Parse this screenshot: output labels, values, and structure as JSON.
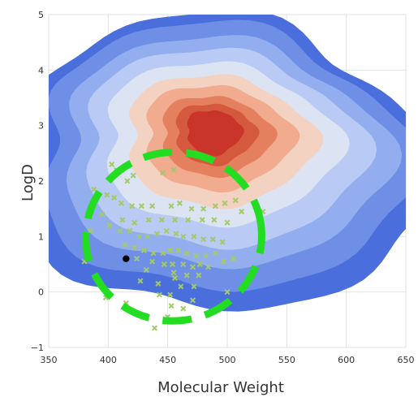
{
  "chart_data": {
    "type": "scatter",
    "title": "",
    "xlabel": "Molecular Weight",
    "ylabel": "LogD",
    "xlim": [
      350,
      650
    ],
    "ylim": [
      -1,
      5
    ],
    "x_ticks": [
      350,
      400,
      450,
      500,
      550,
      600,
      650
    ],
    "x_tick_labels": [
      "350",
      "400",
      "450",
      "500",
      "550",
      "600",
      "650"
    ],
    "y_ticks": [
      -1,
      0,
      1,
      2,
      3,
      4,
      5
    ],
    "y_tick_labels": [
      "−1",
      "0",
      "1",
      "2",
      "3",
      "4",
      "5"
    ],
    "grid": true,
    "legend": "none",
    "background_density": {
      "type": "filled-contour",
      "peak": {
        "x": 487,
        "y": 2.9
      },
      "colors": [
        "#4a6fdc",
        "#6f8fe6",
        "#93aeef",
        "#b9cbf4",
        "#dce4f3",
        "#f4d2c2",
        "#f1ab8f",
        "#e5805f",
        "#d55a3d",
        "#c9352a"
      ]
    },
    "marker_series": {
      "name": "",
      "marker": "x",
      "color": "#a3c96a",
      "points": [
        [
          403,
          2.3
        ],
        [
          407,
          2.2
        ],
        [
          405,
          1.7
        ],
        [
          416,
          2.0
        ],
        [
          421,
          2.1
        ],
        [
          446,
          2.15
        ],
        [
          455,
          2.2
        ],
        [
          507,
          1.65
        ],
        [
          388,
          1.85
        ],
        [
          391,
          1.75
        ],
        [
          399,
          1.75
        ],
        [
          411,
          1.6
        ],
        [
          420,
          1.55
        ],
        [
          428,
          1.55
        ],
        [
          437,
          1.55
        ],
        [
          453,
          1.55
        ],
        [
          460,
          1.6
        ],
        [
          470,
          1.5
        ],
        [
          480,
          1.5
        ],
        [
          490,
          1.55
        ],
        [
          498,
          1.6
        ],
        [
          512,
          1.45
        ],
        [
          530,
          1.45
        ],
        [
          412,
          1.3
        ],
        [
          422,
          1.25
        ],
        [
          434,
          1.3
        ],
        [
          445,
          1.3
        ],
        [
          456,
          1.3
        ],
        [
          467,
          1.3
        ],
        [
          479,
          1.3
        ],
        [
          489,
          1.3
        ],
        [
          500,
          1.25
        ],
        [
          410,
          1.1
        ],
        [
          418,
          1.1
        ],
        [
          426,
          1.0
        ],
        [
          433,
          1.0
        ],
        [
          441,
          1.05
        ],
        [
          449,
          1.1
        ],
        [
          457,
          1.05
        ],
        [
          463,
          1.0
        ],
        [
          472,
          1.0
        ],
        [
          480,
          0.95
        ],
        [
          488,
          0.95
        ],
        [
          496,
          0.9
        ],
        [
          385,
          1.1
        ],
        [
          401,
          1.2
        ],
        [
          395,
          1.4
        ],
        [
          414,
          0.85
        ],
        [
          422,
          0.8
        ],
        [
          430,
          0.75
        ],
        [
          438,
          0.7
        ],
        [
          446,
          0.7
        ],
        [
          452,
          0.75
        ],
        [
          459,
          0.75
        ],
        [
          466,
          0.7
        ],
        [
          474,
          0.65
        ],
        [
          482,
          0.65
        ],
        [
          490,
          0.7
        ],
        [
          497,
          0.55
        ],
        [
          505,
          0.6
        ],
        [
          424,
          0.6
        ],
        [
          437,
          0.55
        ],
        [
          447,
          0.5
        ],
        [
          454,
          0.5
        ],
        [
          463,
          0.5
        ],
        [
          471,
          0.45
        ],
        [
          477,
          0.5
        ],
        [
          484,
          0.45
        ],
        [
          380,
          0.55
        ],
        [
          432,
          0.4
        ],
        [
          455,
          0.35
        ],
        [
          466,
          0.3
        ],
        [
          476,
          0.3
        ],
        [
          456,
          0.25
        ],
        [
          427,
          0.2
        ],
        [
          442,
          0.15
        ],
        [
          461,
          0.1
        ],
        [
          472,
          0.1
        ],
        [
          500,
          0.0
        ],
        [
          452,
          -0.05
        ],
        [
          398,
          -0.1
        ],
        [
          443,
          -0.05
        ],
        [
          471,
          -0.15
        ],
        [
          415,
          -0.2
        ],
        [
          453,
          -0.25
        ],
        [
          463,
          -0.3
        ],
        [
          450,
          -0.45
        ],
        [
          439,
          -0.65
        ]
      ]
    },
    "highlight_point": {
      "x": 415,
      "y": 0.6,
      "color": "#000000"
    },
    "annotation_circle": {
      "shape": "dashed-ellipse",
      "color": "#22dd22",
      "center": {
        "x": 455,
        "y": 1.0
      },
      "radius_x_units": 74,
      "radius_y_units": 1.52
    }
  }
}
